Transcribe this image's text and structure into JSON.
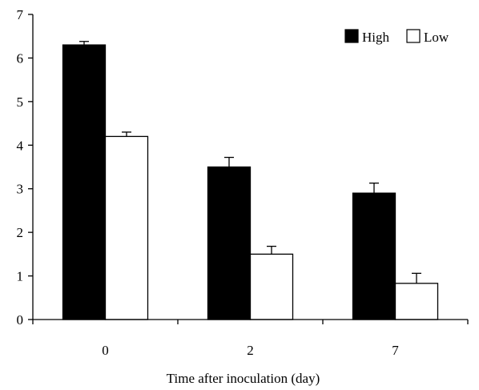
{
  "chart_data": {
    "type": "bar",
    "title": "",
    "xlabel": "Time after inoculation (day)",
    "ylabel": "",
    "categories": [
      "0",
      "2",
      "7"
    ],
    "ylim": [
      0,
      7
    ],
    "yticks": [
      0,
      1,
      2,
      3,
      4,
      5,
      6,
      7
    ],
    "grid": false,
    "legend_position": "top-right",
    "series": [
      {
        "name": "High",
        "values": [
          6.3,
          3.5,
          2.9
        ],
        "errors": [
          0.08,
          0.22,
          0.23
        ],
        "color": "#000000",
        "stroke": "#000000"
      },
      {
        "name": "Low",
        "values": [
          4.2,
          1.5,
          0.83
        ],
        "errors": [
          0.1,
          0.18,
          0.23
        ],
        "color": "#ffffff",
        "stroke": "#000000"
      }
    ]
  }
}
